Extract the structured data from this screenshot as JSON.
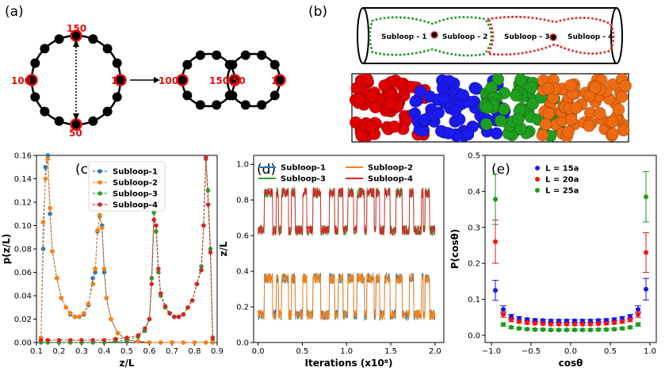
{
  "panel_labels": [
    "(a)",
    "(b)",
    "(c)",
    "(d)",
    "(e)"
  ],
  "panel_a": {
    "ring_labels": [
      "150",
      "100",
      "1",
      "50"
    ],
    "pair_labels": [
      "100",
      "150",
      "50",
      "1"
    ]
  },
  "panel_b": {
    "subloop_labels": [
      "Subloop - 1",
      "Subloop - 2",
      "Subloop - 3",
      "Subloop - 4"
    ],
    "colors": [
      "#2a9d2a",
      "#e03030"
    ],
    "blob_colors": [
      "#e00000",
      "#1a1aee",
      "#1ea01e",
      "#ee6a10"
    ]
  },
  "chart_data": [
    {
      "panel": "(c)",
      "type": "line",
      "xlabel": "z/L",
      "ylabel": "p(z/L)",
      "xlim": [
        0.1,
        0.9
      ],
      "ylim": [
        0.0,
        0.16
      ],
      "xticks": [
        "0.1",
        "0.2",
        "0.3",
        "0.4",
        "0.5",
        "0.6",
        "0.7",
        "0.8",
        "0.9"
      ],
      "yticks": [
        "0.00",
        "0.02",
        "0.04",
        "0.06",
        "0.08",
        "0.10",
        "0.12",
        "0.14",
        "0.16"
      ],
      "legend_position": "top-right",
      "series": [
        {
          "name": "Subloop-1",
          "color": "#1f77b4",
          "x": [
            0.12,
            0.13,
            0.14,
            0.15,
            0.16,
            0.17,
            0.19,
            0.21,
            0.23,
            0.25,
            0.27,
            0.29,
            0.31,
            0.33,
            0.35,
            0.36,
            0.37,
            0.38,
            0.39,
            0.4,
            0.41,
            0.43,
            0.46,
            0.5,
            0.55,
            0.6,
            0.65,
            0.7,
            0.75,
            0.8,
            0.85,
            0.88
          ],
          "y": [
            0.004,
            0.08,
            0.15,
            0.16,
            0.11,
            0.078,
            0.055,
            0.038,
            0.03,
            0.024,
            0.022,
            0.022,
            0.024,
            0.032,
            0.055,
            0.06,
            0.095,
            0.108,
            0.1,
            0.06,
            0.038,
            0.02,
            0.008,
            0.002,
            0.001,
            0,
            0,
            0,
            0,
            0,
            0,
            0
          ]
        },
        {
          "name": "Subloop-2",
          "color": "#ff7f0e",
          "x": [
            0.12,
            0.13,
            0.14,
            0.15,
            0.16,
            0.17,
            0.19,
            0.21,
            0.23,
            0.25,
            0.27,
            0.29,
            0.31,
            0.33,
            0.35,
            0.36,
            0.37,
            0.38,
            0.39,
            0.4,
            0.41,
            0.43,
            0.46,
            0.5,
            0.55,
            0.6,
            0.65,
            0.7,
            0.75,
            0.8,
            0.85,
            0.88
          ],
          "y": [
            0.004,
            0.103,
            0.14,
            0.157,
            0.115,
            0.078,
            0.055,
            0.038,
            0.03,
            0.025,
            0.022,
            0.022,
            0.025,
            0.033,
            0.05,
            0.063,
            0.096,
            0.109,
            0.098,
            0.063,
            0.038,
            0.02,
            0.008,
            0.002,
            0.001,
            0,
            0,
            0,
            0,
            0,
            0,
            0
          ]
        },
        {
          "name": "Subloop-3",
          "color": "#2ca02c",
          "x": [
            0.12,
            0.15,
            0.2,
            0.25,
            0.3,
            0.35,
            0.4,
            0.45,
            0.5,
            0.55,
            0.58,
            0.6,
            0.61,
            0.62,
            0.63,
            0.64,
            0.65,
            0.67,
            0.69,
            0.71,
            0.73,
            0.75,
            0.77,
            0.79,
            0.81,
            0.83,
            0.84,
            0.85,
            0.86,
            0.87,
            0.88
          ],
          "y": [
            0,
            0,
            0,
            0,
            0,
            0,
            0,
            0.001,
            0.002,
            0.005,
            0.01,
            0.02,
            0.055,
            0.111,
            0.095,
            0.06,
            0.04,
            0.03,
            0.025,
            0.022,
            0.022,
            0.024,
            0.03,
            0.036,
            0.05,
            0.065,
            0.1,
            0.157,
            0.13,
            0.08,
            0.003
          ]
        },
        {
          "name": "Subloop-4",
          "color": "#d62728",
          "x": [
            0.12,
            0.15,
            0.2,
            0.25,
            0.3,
            0.35,
            0.4,
            0.45,
            0.5,
            0.55,
            0.58,
            0.6,
            0.61,
            0.62,
            0.63,
            0.64,
            0.65,
            0.67,
            0.69,
            0.71,
            0.73,
            0.75,
            0.77,
            0.79,
            0.81,
            0.83,
            0.84,
            0.85,
            0.86,
            0.87,
            0.88
          ],
          "y": [
            0.002,
            0.002,
            0.002,
            0.002,
            0.002,
            0.002,
            0.002,
            0.003,
            0.004,
            0.006,
            0.012,
            0.02,
            0.05,
            0.105,
            0.1,
            0.063,
            0.042,
            0.031,
            0.025,
            0.022,
            0.022,
            0.024,
            0.03,
            0.036,
            0.05,
            0.062,
            0.1,
            0.158,
            0.118,
            0.077,
            0.004
          ]
        }
      ]
    },
    {
      "panel": "(d)",
      "type": "line",
      "xlabel": "Iterations (x10⁸)",
      "ylabel": "z/L",
      "xlim": [
        -0.05,
        2.1
      ],
      "ylim": [
        0.0,
        1.05
      ],
      "xticks": [
        "0.0",
        "0.5",
        "1.0",
        "1.5",
        "2.0"
      ],
      "yticks": [
        "0.0",
        "0.2",
        "0.4",
        "0.6",
        "0.8",
        "1.0"
      ],
      "legend_position": "top",
      "series": [
        {
          "name": "Subloop-1",
          "color": "#1f77b4",
          "states": [
            0.155,
            0.36
          ]
        },
        {
          "name": "Subloop-2",
          "color": "#ff7f0e",
          "states": [
            0.36,
            0.155
          ]
        },
        {
          "name": "Subloop-3",
          "color": "#2ca02c",
          "states": [
            0.63,
            0.84
          ]
        },
        {
          "name": "Subloop-4",
          "color": "#d62728",
          "states": [
            0.84,
            0.63
          ]
        }
      ]
    },
    {
      "panel": "(e)",
      "type": "scatter",
      "xlabel": "cosθ",
      "ylabel": "P(cosθ)",
      "xlim": [
        -1.08,
        1.08
      ],
      "ylim": [
        -0.02,
        0.5
      ],
      "xticks": [
        "−1.0",
        "−0.5",
        "0.0",
        "0.5",
        "1.0"
      ],
      "yticks": [
        "0.0",
        "0.1",
        "0.2",
        "0.3",
        "0.4",
        "0.5"
      ],
      "legend_position": "top-left",
      "x": [
        -0.95,
        -0.85,
        -0.75,
        -0.65,
        -0.55,
        -0.45,
        -0.35,
        -0.25,
        -0.15,
        -0.05,
        0.05,
        0.15,
        0.25,
        0.35,
        0.45,
        0.55,
        0.65,
        0.75,
        0.85,
        0.95
      ],
      "series": [
        {
          "name": "L = 15a",
          "color": "#1515ee",
          "values": [
            0.125,
            0.072,
            0.052,
            0.047,
            0.044,
            0.042,
            0.041,
            0.04,
            0.04,
            0.04,
            0.04,
            0.04,
            0.04,
            0.041,
            0.042,
            0.044,
            0.047,
            0.052,
            0.072,
            0.128
          ],
          "errors": [
            0.028,
            0.01,
            0.006,
            0.005,
            0.004,
            0.004,
            0.004,
            0.004,
            0.004,
            0.004,
            0.004,
            0.004,
            0.004,
            0.004,
            0.004,
            0.004,
            0.005,
            0.006,
            0.01,
            0.03
          ]
        },
        {
          "name": "L = 20a",
          "color": "#ee1515",
          "values": [
            0.26,
            0.058,
            0.043,
            0.038,
            0.035,
            0.033,
            0.032,
            0.031,
            0.031,
            0.031,
            0.031,
            0.031,
            0.031,
            0.032,
            0.033,
            0.035,
            0.038,
            0.043,
            0.058,
            0.23
          ],
          "errors": [
            0.06,
            0.008,
            0.005,
            0.004,
            0.004,
            0.003,
            0.003,
            0.003,
            0.003,
            0.003,
            0.003,
            0.003,
            0.003,
            0.003,
            0.003,
            0.004,
            0.004,
            0.005,
            0.008,
            0.055
          ]
        },
        {
          "name": "L = 25a",
          "color": "#1a9a1a",
          "values": [
            0.378,
            0.03,
            0.022,
            0.019,
            0.017,
            0.016,
            0.016,
            0.015,
            0.015,
            0.015,
            0.015,
            0.015,
            0.015,
            0.016,
            0.016,
            0.017,
            0.019,
            0.022,
            0.03,
            0.385
          ],
          "errors": [
            0.07,
            0.005,
            0.003,
            0.003,
            0.003,
            0.003,
            0.003,
            0.003,
            0.003,
            0.003,
            0.003,
            0.003,
            0.003,
            0.003,
            0.003,
            0.003,
            0.003,
            0.003,
            0.005,
            0.07
          ]
        }
      ]
    }
  ]
}
